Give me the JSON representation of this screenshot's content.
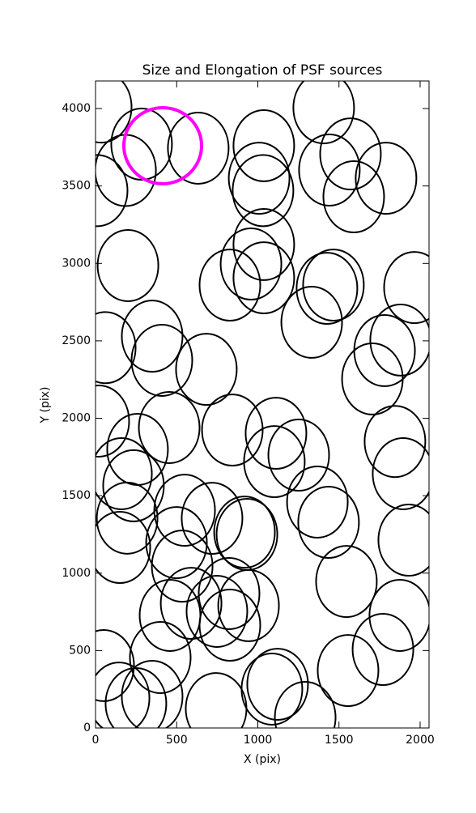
{
  "chart_data": {
    "type": "ellipse",
    "title": "Size and Elongation of PSF sources",
    "x_label": "X (pix)",
    "y_label": "Y (pix)",
    "xlim": [
      0,
      2055
    ],
    "ylim": [
      0,
      4178
    ],
    "xticks": [
      0,
      500,
      1000,
      1500,
      2000
    ],
    "yticks": [
      0,
      500,
      1000,
      1500,
      2000,
      2500,
      3000,
      3500,
      4000
    ],
    "series": [
      {
        "color": "#000000",
        "line_width": 2,
        "width": 374,
        "height": 460,
        "x": [
          35,
          284,
          185,
          10,
          633,
          1037,
          1008,
          1032,
          1406,
          1441,
          1571,
          1790,
          1591,
          1037,
          958,
          828,
          1037,
          200,
          1466,
          1426,
          1332,
          1965,
          1880,
          1781,
          1706,
          60,
          349,
          409,
          683,
          20,
          454,
          843,
          1112,
          1102,
          1252,
          1845,
          1895,
          259,
          160,
          234,
          195,
          150,
          549,
          499,
          718,
          933,
          918,
          1367,
          1436,
          1930,
          534,
          589,
          459,
          748,
          823,
          943,
          828,
          1546,
          1875,
          1771,
          1556,
          50,
          399,
          145,
          249,
          349,
          743,
          1122,
          1087,
          1292
        ],
        "y": [
          4010,
          3770,
          3600,
          3470,
          3744,
          3760,
          3550,
          3470,
          4005,
          3603,
          3707,
          3550,
          3430,
          3122,
          2996,
          2860,
          2907,
          2986,
          2860,
          2839,
          2620,
          2844,
          2505,
          2437,
          2254,
          2456,
          2530,
          2374,
          2316,
          1982,
          1940,
          1924,
          1903,
          1720,
          1762,
          1850,
          1642,
          1799,
          1642,
          1564,
          1355,
          1166,
          1406,
          1197,
          1354,
          1250,
          1265,
          1459,
          1328,
          1213,
          1045,
          805,
          727,
          753,
          868,
          790,
          664,
          946,
          727,
          507,
          371,
          403,
          455,
          193,
          157,
          204,
          125,
          282,
          251,
          68
        ]
      },
      {
        "color": "#ff00ff",
        "line_width": 4,
        "width": 479,
        "height": 491,
        "x": [
          414
        ],
        "y": [
          3760
        ]
      }
    ]
  }
}
